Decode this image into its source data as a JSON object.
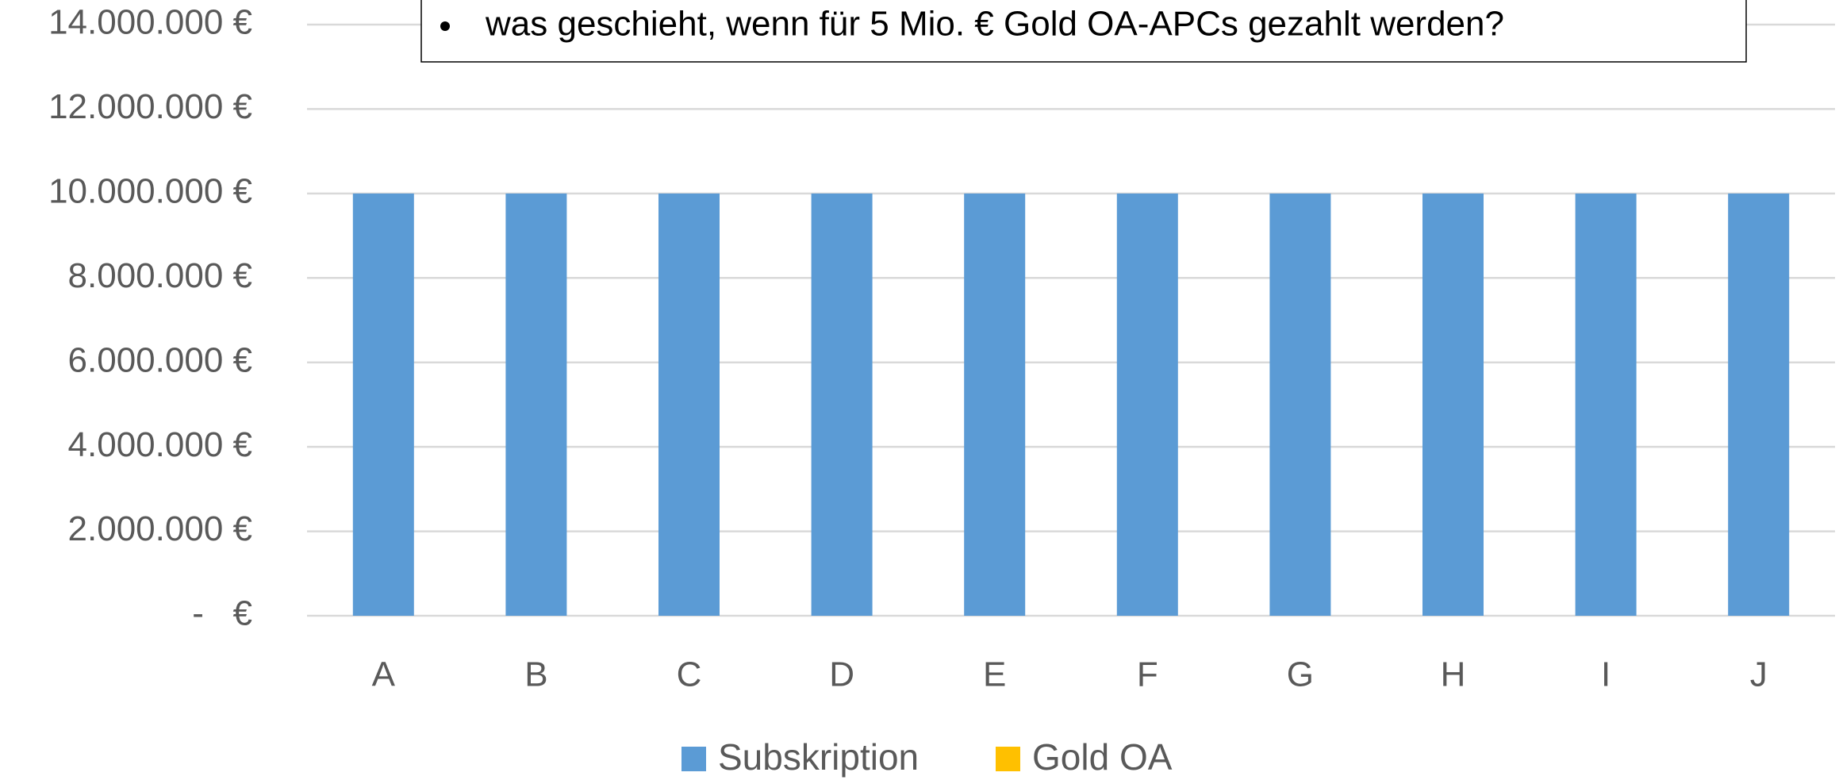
{
  "chart_data": {
    "type": "stacked_bar",
    "annotation": "was geschieht, wenn für 5 Mio. € Gold OA-APCs gezahlt werden?",
    "categories": [
      "A",
      "B",
      "C",
      "D",
      "E",
      "F",
      "G",
      "H",
      "I",
      "J"
    ],
    "series": [
      {
        "name": "Subskription",
        "color": "#5b9bd5",
        "values": [
          10000000,
          10000000,
          10000000,
          10000000,
          10000000,
          10000000,
          10000000,
          10000000,
          10000000,
          10000000
        ]
      },
      {
        "name": "Gold OA",
        "color": "#ffc000",
        "values": [
          0,
          0,
          0,
          0,
          0,
          0,
          0,
          0,
          0,
          0
        ]
      }
    ],
    "ylim": [
      0,
      14000000
    ],
    "yticks": [
      {
        "value": 0,
        "label": "-   €"
      },
      {
        "value": 2000000,
        "label": "2.000.000 €"
      },
      {
        "value": 4000000,
        "label": "4.000.000 €"
      },
      {
        "value": 6000000,
        "label": "6.000.000 €"
      },
      {
        "value": 8000000,
        "label": "8.000.000 €"
      },
      {
        "value": 10000000,
        "label": "10.000.000 €"
      },
      {
        "value": 12000000,
        "label": "12.000.000 €"
      },
      {
        "value": 14000000,
        "label": "14.000.000 €"
      }
    ],
    "grid": true,
    "legend": "bottom"
  }
}
